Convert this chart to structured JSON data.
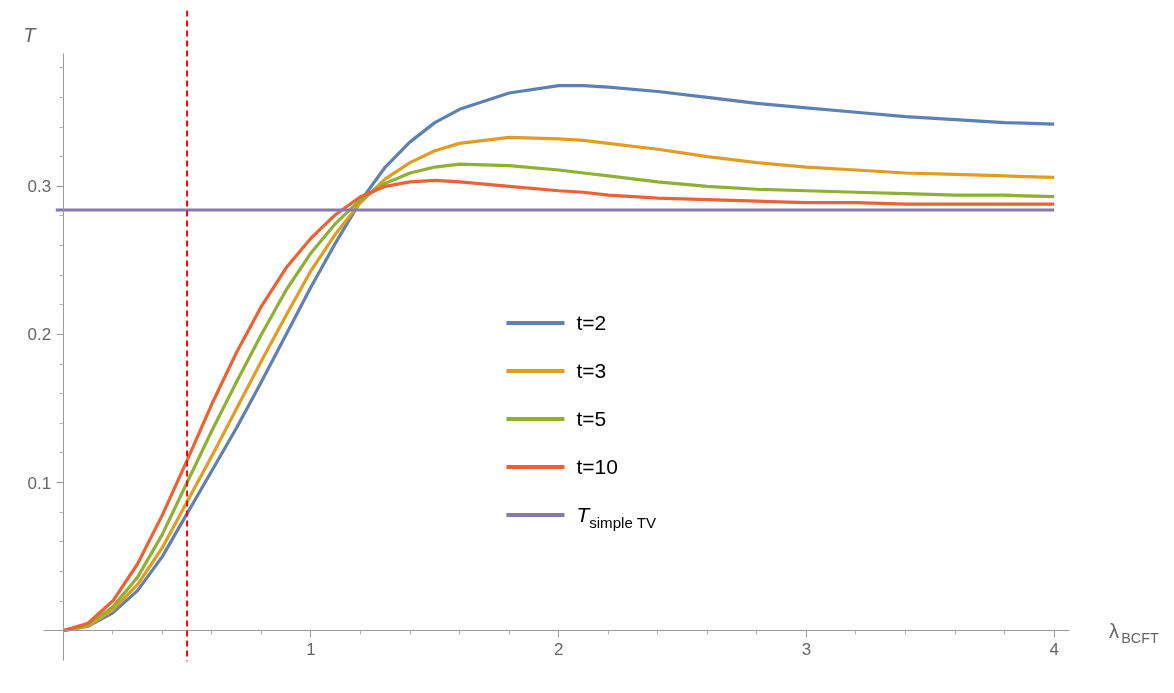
{
  "chart_data": {
    "type": "line",
    "xlabel": "λ$_{BCFT}$",
    "ylabel": "T",
    "x": [
      0,
      0.1,
      0.2,
      0.3,
      0.4,
      0.5,
      0.6,
      0.7,
      0.8,
      0.9,
      1.0,
      1.1,
      1.2,
      1.3,
      1.4,
      1.5,
      1.6,
      1.8,
      2.0,
      2.1,
      2.2,
      2.4,
      2.6,
      2.8,
      3.0,
      3.2,
      3.4,
      3.6,
      3.8,
      4.0
    ],
    "series": [
      {
        "name": "t=2",
        "color": "#5e81b5",
        "values": [
          0,
          0.003,
          0.012,
          0.027,
          0.05,
          0.079,
          0.108,
          0.137,
          0.168,
          0.2,
          0.232,
          0.262,
          0.29,
          0.313,
          0.33,
          0.343,
          0.352,
          0.363,
          0.368,
          0.368,
          0.367,
          0.364,
          0.36,
          0.356,
          0.353,
          0.35,
          0.347,
          0.345,
          0.343,
          0.342
        ]
      },
      {
        "name": "t=3",
        "color": "#e19c24",
        "values": [
          0,
          0.003,
          0.014,
          0.031,
          0.056,
          0.087,
          0.118,
          0.15,
          0.182,
          0.213,
          0.243,
          0.268,
          0.289,
          0.305,
          0.316,
          0.324,
          0.329,
          0.333,
          0.332,
          0.331,
          0.329,
          0.325,
          0.32,
          0.316,
          0.313,
          0.311,
          0.309,
          0.308,
          0.307,
          0.306
        ]
      },
      {
        "name": "t=5",
        "color": "#8fb032",
        "values": [
          0,
          0.004,
          0.016,
          0.036,
          0.065,
          0.1,
          0.135,
          0.168,
          0.2,
          0.23,
          0.255,
          0.275,
          0.291,
          0.302,
          0.309,
          0.313,
          0.315,
          0.314,
          0.311,
          0.309,
          0.307,
          0.303,
          0.3,
          0.298,
          0.297,
          0.296,
          0.295,
          0.294,
          0.294,
          0.293
        ]
      },
      {
        "name": "t=10",
        "color": "#eb6235",
        "values": [
          0,
          0.005,
          0.02,
          0.045,
          0.078,
          0.115,
          0.153,
          0.188,
          0.219,
          0.245,
          0.265,
          0.281,
          0.293,
          0.3,
          0.303,
          0.304,
          0.303,
          0.3,
          0.297,
          0.296,
          0.294,
          0.292,
          0.291,
          0.29,
          0.289,
          0.289,
          0.288,
          0.288,
          0.288,
          0.288
        ]
      },
      {
        "name": "T$_{simple TV}$",
        "color": "#8778b3",
        "x": [
          -0.03,
          4.0
        ],
        "values": [
          0.284,
          0.284
        ]
      }
    ],
    "ref_lines": [
      {
        "axis": "x",
        "value": 0.5,
        "color": "#ff0000",
        "line_style": "dashed"
      }
    ],
    "xlim": [
      -0.08,
      4.06
    ],
    "ylim": [
      -0.02,
      0.39
    ],
    "xticks": [
      {
        "value": 0.2,
        "label": null
      },
      {
        "value": 0.4,
        "label": null
      },
      {
        "value": 0.6,
        "label": null
      },
      {
        "value": 0.8,
        "label": null
      },
      1,
      {
        "value": 1.2,
        "label": null
      },
      {
        "value": 1.4,
        "label": null
      },
      {
        "value": 1.6,
        "label": null
      },
      {
        "value": 1.8,
        "label": null
      },
      2,
      {
        "value": 2.2,
        "label": null
      },
      {
        "value": 2.4,
        "label": null
      },
      {
        "value": 2.6,
        "label": null
      },
      {
        "value": 2.8,
        "label": null
      },
      3,
      {
        "value": 3.2,
        "label": null
      },
      {
        "value": 3.4,
        "label": null
      },
      {
        "value": 3.6,
        "label": null
      },
      {
        "value": 3.8,
        "label": null
      },
      4
    ],
    "yticks": [
      {
        "value": 0.02,
        "label": null
      },
      {
        "value": 0.04,
        "label": null
      },
      {
        "value": 0.06,
        "label": null
      },
      {
        "value": 0.08,
        "label": null
      },
      0.1,
      {
        "value": 0.12,
        "label": null
      },
      {
        "value": 0.14,
        "label": null
      },
      {
        "value": 0.16,
        "label": null
      },
      {
        "value": 0.18,
        "label": null
      },
      0.2,
      {
        "value": 0.22,
        "label": null
      },
      {
        "value": 0.24,
        "label": null
      },
      {
        "value": 0.26,
        "label": null
      },
      {
        "value": 0.28,
        "label": null
      },
      0.3,
      {
        "value": 0.32,
        "label": null
      },
      {
        "value": 0.34,
        "label": null
      },
      {
        "value": 0.36,
        "label": null
      },
      {
        "value": 0.38,
        "label": null
      }
    ],
    "grid": false,
    "legend": "center",
    "marker": "none",
    "line_style": "solid"
  }
}
